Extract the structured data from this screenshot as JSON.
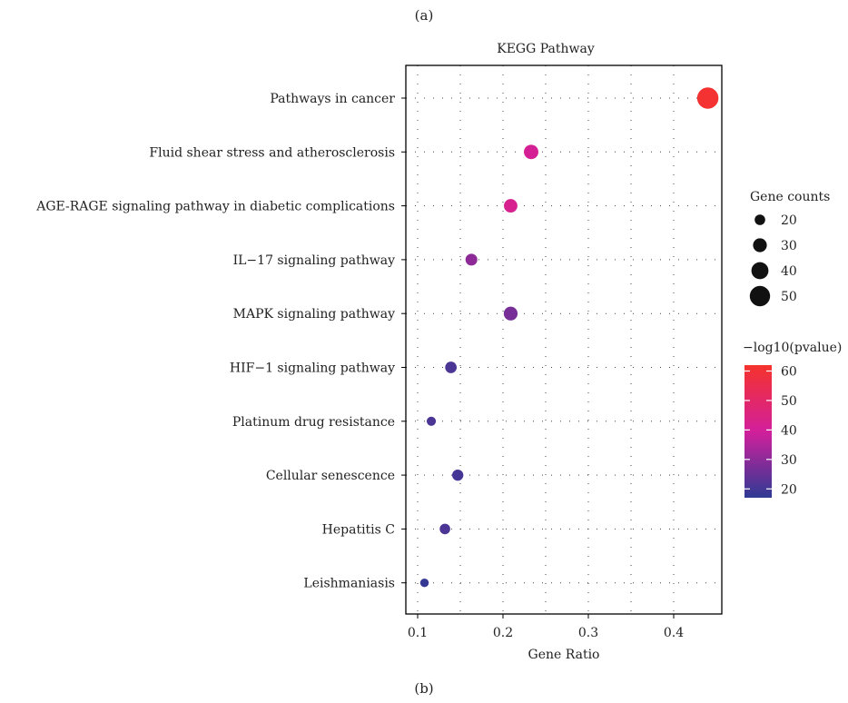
{
  "labels": {
    "top_caption": "(a)",
    "bottom_caption": "(b)"
  },
  "chart_data": {
    "type": "scatter",
    "title": "KEGG Pathway",
    "xlabel": "Gene Ratio",
    "ylabel": "",
    "xlim": [
      0.09,
      0.45
    ],
    "xticks": [
      0.1,
      0.2,
      0.3,
      0.4
    ],
    "grid": true,
    "categories": [
      "Pathways in cancer",
      "Fluid shear stress and atherosclerosis",
      "AGE-RAGE signaling pathway in diabetic complications",
      "IL−17 signaling pathway",
      "MAPK signaling pathway",
      "HIF−1 signaling pathway",
      "Platinum drug resistance",
      "Cellular senescence",
      "Hepatitis C",
      "Leishmaniasis"
    ],
    "points": [
      {
        "gene_ratio": 0.44,
        "count": 53,
        "neg_log10_pvalue": 61
      },
      {
        "gene_ratio": 0.233,
        "count": 32,
        "neg_log10_pvalue": 41
      },
      {
        "gene_ratio": 0.209,
        "count": 29,
        "neg_log10_pvalue": 42
      },
      {
        "gene_ratio": 0.163,
        "count": 24,
        "neg_log10_pvalue": 30
      },
      {
        "gene_ratio": 0.209,
        "count": 30,
        "neg_log10_pvalue": 27
      },
      {
        "gene_ratio": 0.139,
        "count": 23,
        "neg_log10_pvalue": 21
      },
      {
        "gene_ratio": 0.116,
        "count": 16,
        "neg_log10_pvalue": 21
      },
      {
        "gene_ratio": 0.147,
        "count": 22,
        "neg_log10_pvalue": 20
      },
      {
        "gene_ratio": 0.132,
        "count": 20,
        "neg_log10_pvalue": 21
      },
      {
        "gene_ratio": 0.108,
        "count": 14,
        "neg_log10_pvalue": 18
      }
    ],
    "size_legend": {
      "title": "Gene counts",
      "values": [
        20,
        30,
        40,
        50
      ]
    },
    "color_legend": {
      "title": "−log10(pvalue)",
      "range": [
        17,
        62
      ],
      "ticks": [
        20,
        30,
        40,
        50,
        60
      ],
      "low_color": "#2e3a94",
      "mid_color": "#d21f9b",
      "high_color": "#f5332c"
    }
  }
}
